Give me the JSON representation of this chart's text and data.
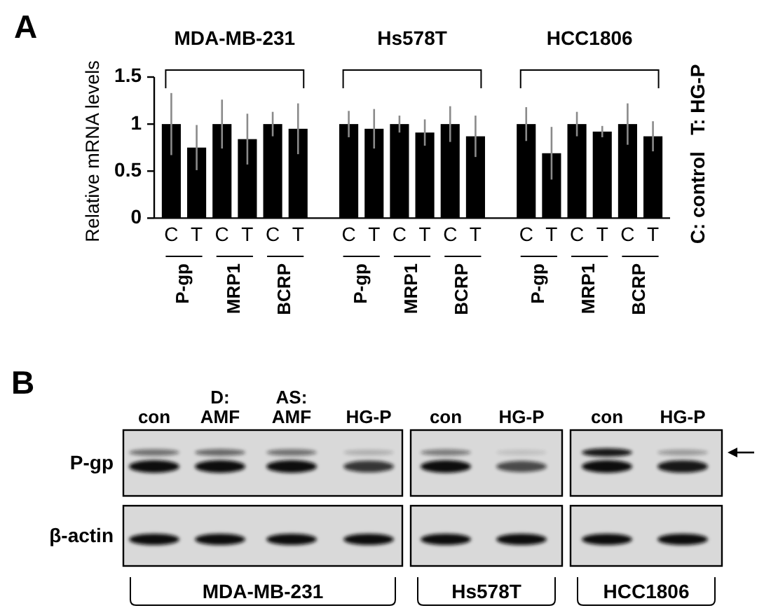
{
  "chart_data": [
    {
      "type": "bar",
      "title": "A",
      "ylabel": "Relative mRNA levels",
      "categories": [
        "C",
        "T",
        "C",
        "T",
        "C",
        "T",
        null,
        "C",
        "T",
        "C",
        "T",
        "C",
        "T",
        null,
        "C",
        "T",
        "C",
        "T",
        "C",
        "T"
      ],
      "values": [
        1.0,
        0.75,
        1.0,
        0.84,
        1.0,
        0.95,
        null,
        1.0,
        0.95,
        1.0,
        0.91,
        1.0,
        0.87,
        null,
        1.0,
        0.69,
        1.0,
        0.92,
        1.0,
        0.87
      ],
      "errors": [
        0.33,
        0.24,
        0.26,
        0.27,
        0.13,
        0.27,
        null,
        0.14,
        0.21,
        0.09,
        0.14,
        0.19,
        0.22,
        null,
        0.18,
        0.28,
        0.13,
        0.06,
        0.22,
        0.16
      ],
      "color": "#000000",
      "ylim": [
        0,
        1.5
      ],
      "yticks": [
        0,
        0.5,
        1,
        1.5
      ],
      "annotations": [
        "MDA-MB-231",
        "Hs578T",
        "HCC1806",
        "P-gp",
        "MRP1",
        "BCRP",
        "P-gp",
        "MRP1",
        "BCRP",
        "P-gp",
        "MRP1",
        "BCRP",
        "C: control   T: HG-P"
      ]
    },
    {
      "type": "other",
      "title": "B",
      "categories": [
        "con",
        "D: AMF",
        "AS: AMF",
        "HG-P",
        "con",
        "HG-P",
        "con",
        "HG-P"
      ],
      "y_categories": [
        "P-gp",
        "β-actin"
      ],
      "annotations": [
        "MDA-MB-231",
        "Hs578T",
        "HCC1806"
      ]
    }
  ]
}
